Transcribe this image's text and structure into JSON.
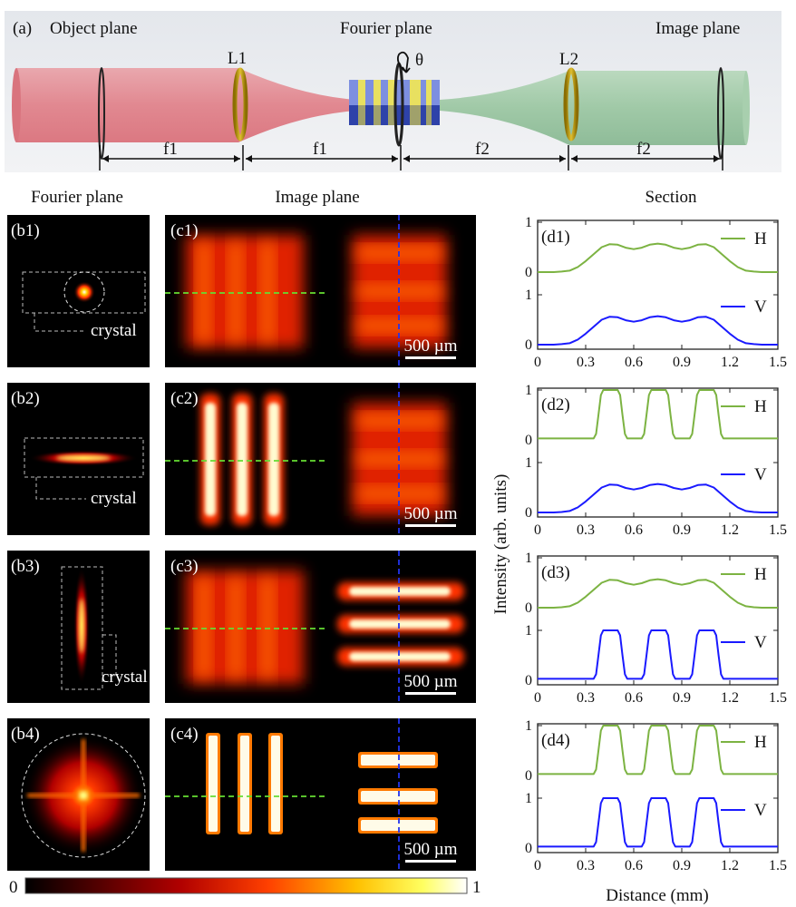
{
  "panel_a": {
    "label": "(a)",
    "object_plane": "Object plane",
    "fourier_plane": "Fourier plane",
    "image_plane": "Image plane",
    "lens1": "L1",
    "lens2": "L2",
    "theta": "θ",
    "dist": [
      "f1",
      "f1",
      "f2",
      "f2"
    ]
  },
  "headers": {
    "fourier": "Fourier plane",
    "image": "Image plane",
    "section": "Section"
  },
  "b_panels": [
    {
      "label": "(b1)",
      "crystal": "crystal"
    },
    {
      "label": "(b2)",
      "crystal": "crystal"
    },
    {
      "label": "(b3)",
      "crystal": "crystal"
    },
    {
      "label": "(b4)"
    }
  ],
  "c_panels": [
    {
      "label": "(c1)",
      "scale": "500 µm"
    },
    {
      "label": "(c2)",
      "scale": "500 µm"
    },
    {
      "label": "(c3)",
      "scale": "500 µm"
    },
    {
      "label": "(c4)",
      "scale": "500 µm"
    }
  ],
  "colorbar": {
    "min": "0",
    "max": "1"
  },
  "colors": {
    "H": "#7cb342",
    "V": "#1a1aff",
    "guide_h": "#66dd33",
    "guide_v": "#2233ee"
  },
  "chart_data": {
    "type": "line",
    "xlabel": "Distance (mm)",
    "ylabel": "Intensity (arb. units)",
    "xlim": [
      0,
      1.5
    ],
    "ylim": [
      0,
      1
    ],
    "xticks": [
      "0",
      "0.3",
      "0.6",
      "0.9",
      "1.2",
      "1.5"
    ],
    "yticks": [
      "0",
      "1"
    ],
    "legend_position": "right",
    "profiles": {
      "smooth": {
        "x": [
          0,
          0.05,
          0.1,
          0.15,
          0.2,
          0.25,
          0.3,
          0.35,
          0.4,
          0.45,
          0.5,
          0.55,
          0.6,
          0.65,
          0.7,
          0.75,
          0.8,
          0.85,
          0.9,
          0.95,
          1.0,
          1.05,
          1.1,
          1.15,
          1.2,
          1.25,
          1.3,
          1.35,
          1.4,
          1.45,
          1.5
        ],
        "y": [
          0,
          0,
          0,
          0.01,
          0.03,
          0.1,
          0.22,
          0.36,
          0.5,
          0.56,
          0.55,
          0.49,
          0.46,
          0.49,
          0.55,
          0.57,
          0.55,
          0.49,
          0.46,
          0.49,
          0.55,
          0.56,
          0.5,
          0.36,
          0.22,
          0.1,
          0.03,
          0.01,
          0,
          0,
          0
        ]
      },
      "sharp": {
        "x": [
          0,
          0.35,
          0.365,
          0.38,
          0.395,
          0.41,
          0.5,
          0.515,
          0.53,
          0.545,
          0.56,
          0.65,
          0.665,
          0.68,
          0.695,
          0.71,
          0.8,
          0.815,
          0.83,
          0.845,
          0.86,
          0.95,
          0.965,
          0.98,
          0.995,
          1.01,
          1.1,
          1.115,
          1.13,
          1.145,
          1.16,
          1.5
        ],
        "y": [
          0.03,
          0.03,
          0.12,
          0.5,
          0.9,
          1.0,
          1.0,
          0.9,
          0.5,
          0.12,
          0.03,
          0.03,
          0.12,
          0.5,
          0.9,
          1.0,
          1.0,
          0.9,
          0.5,
          0.12,
          0.03,
          0.03,
          0.12,
          0.5,
          0.9,
          1.0,
          1.0,
          0.9,
          0.5,
          0.12,
          0.03,
          0.03
        ]
      }
    },
    "panels": [
      {
        "label": "(d1)",
        "series": [
          {
            "name": "H",
            "profile": "smooth"
          },
          {
            "name": "V",
            "profile": "smooth"
          }
        ]
      },
      {
        "label": "(d2)",
        "series": [
          {
            "name": "H",
            "profile": "sharp"
          },
          {
            "name": "V",
            "profile": "smooth"
          }
        ]
      },
      {
        "label": "(d3)",
        "series": [
          {
            "name": "H",
            "profile": "smooth"
          },
          {
            "name": "V",
            "profile": "sharp"
          }
        ]
      },
      {
        "label": "(d4)",
        "series": [
          {
            "name": "H",
            "profile": "sharp"
          },
          {
            "name": "V",
            "profile": "sharp"
          }
        ]
      }
    ]
  }
}
